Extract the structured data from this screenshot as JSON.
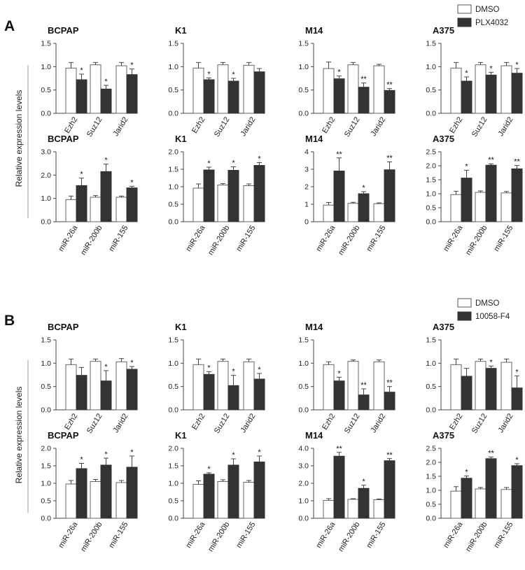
{
  "figure": {
    "sections": [
      {
        "letter": "A",
        "ylabel": "Relative expression levels",
        "legend": [
          {
            "label": "DMSO",
            "color": "#ffffff"
          },
          {
            "label": "PLX4032",
            "color": "#333333"
          }
        ]
      },
      {
        "letter": "B",
        "ylabel": "Relative expression levels",
        "legend": [
          {
            "label": "DMSO",
            "color": "#ffffff"
          },
          {
            "label": "10058-F4",
            "color": "#333333"
          }
        ]
      }
    ]
  },
  "chart_data": [
    {
      "type": "bar",
      "section": "A",
      "title": "BCPAP",
      "categories": [
        "Ezh2",
        "Suz12",
        "Jarid2"
      ],
      "ylim": [
        0,
        1.5
      ],
      "yticks": [
        "0.0",
        "0.5",
        "1.0",
        "1.5"
      ],
      "series": [
        {
          "name": "DMSO",
          "values": [
            0.97,
            1.04,
            1.02
          ],
          "errors": [
            0.12,
            0.05,
            0.07
          ]
        },
        {
          "name": "PLX4032",
          "values": [
            0.72,
            0.52,
            0.83
          ],
          "errors": [
            0.12,
            0.08,
            0.12
          ]
        }
      ],
      "annotations": [
        "*",
        "*",
        "*"
      ]
    },
    {
      "type": "bar",
      "section": "A",
      "title": "K1",
      "categories": [
        "Ezh2",
        "Suz12",
        "Jarid2"
      ],
      "ylim": [
        0,
        1.5
      ],
      "yticks": [
        "0.0",
        "0.5",
        "1.0",
        "1.5"
      ],
      "series": [
        {
          "name": "DMSO",
          "values": [
            0.97,
            1.04,
            1.03
          ],
          "errors": [
            0.12,
            0.05,
            0.06
          ]
        },
        {
          "name": "PLX4032",
          "values": [
            0.72,
            0.69,
            0.89
          ],
          "errors": [
            0.04,
            0.06,
            0.07
          ]
        }
      ],
      "annotations": [
        "*",
        "*",
        ""
      ]
    },
    {
      "type": "bar",
      "section": "A",
      "title": "M14",
      "categories": [
        "Ezh2",
        "Suz12",
        "Jarid2"
      ],
      "ylim": [
        0,
        1.5
      ],
      "yticks": [
        "0.0",
        "0.5",
        "1.0",
        "1.5"
      ],
      "series": [
        {
          "name": "DMSO",
          "values": [
            0.96,
            1.04,
            1.02
          ],
          "errors": [
            0.14,
            0.05,
            0.03
          ]
        },
        {
          "name": "PLX4032",
          "values": [
            0.74,
            0.56,
            0.49
          ],
          "errors": [
            0.06,
            0.09,
            0.04
          ]
        }
      ],
      "annotations": [
        "*",
        "**",
        "**"
      ]
    },
    {
      "type": "bar",
      "section": "A",
      "title": "A375",
      "categories": [
        "Ezh2",
        "Suz12",
        "Jarid2"
      ],
      "ylim": [
        0,
        1.5
      ],
      "yticks": [
        "0.0",
        "0.5",
        "1.0",
        "1.5"
      ],
      "series": [
        {
          "name": "DMSO",
          "values": [
            0.97,
            1.04,
            1.02
          ],
          "errors": [
            0.12,
            0.05,
            0.07
          ]
        },
        {
          "name": "PLX4032",
          "values": [
            0.69,
            0.82,
            0.86
          ],
          "errors": [
            0.09,
            0.06,
            0.1
          ]
        }
      ],
      "annotations": [
        "*",
        "*",
        "*"
      ]
    },
    {
      "type": "bar",
      "section": "A",
      "title": "BCPAP",
      "categories": [
        "miR-26a",
        "miR-200b",
        "miR-155"
      ],
      "ylim": [
        0,
        3
      ],
      "yticks": [
        "0.0",
        "1.0",
        "2.0",
        "3.0"
      ],
      "series": [
        {
          "name": "DMSO",
          "values": [
            0.95,
            1.05,
            1.05
          ],
          "errors": [
            0.15,
            0.07,
            0.05
          ]
        },
        {
          "name": "PLX4032",
          "values": [
            1.55,
            2.15,
            1.45
          ],
          "errors": [
            0.32,
            0.32,
            0.07
          ]
        }
      ],
      "annotations": [
        "*",
        "*",
        "*"
      ]
    },
    {
      "type": "bar",
      "section": "A",
      "title": "K1",
      "categories": [
        "miR-26a",
        "miR-200b",
        "miR-155"
      ],
      "ylim": [
        0,
        2
      ],
      "yticks": [
        "0.0",
        "0.5",
        "1.0",
        "1.5",
        "2.0"
      ],
      "series": [
        {
          "name": "DMSO",
          "values": [
            0.96,
            1.05,
            1.03
          ],
          "errors": [
            0.12,
            0.04,
            0.05
          ]
        },
        {
          "name": "PLX4032",
          "values": [
            1.48,
            1.47,
            1.61
          ],
          "errors": [
            0.08,
            0.1,
            0.08
          ]
        }
      ],
      "annotations": [
        "*",
        "*",
        "*"
      ]
    },
    {
      "type": "bar",
      "section": "A",
      "title": "M14",
      "categories": [
        "miR-26a",
        "miR-200b",
        "miR-155"
      ],
      "ylim": [
        0,
        4
      ],
      "yticks": [
        "0",
        "1",
        "2",
        "3",
        "4"
      ],
      "series": [
        {
          "name": "DMSO",
          "values": [
            0.95,
            1.05,
            1.03
          ],
          "errors": [
            0.15,
            0.06,
            0.05
          ]
        },
        {
          "name": "PLX4032",
          "values": [
            2.9,
            1.6,
            2.97
          ],
          "errors": [
            0.75,
            0.12,
            0.45
          ]
        }
      ],
      "annotations": [
        "**",
        "*",
        "**"
      ]
    },
    {
      "type": "bar",
      "section": "A",
      "title": "A375",
      "categories": [
        "miR-26a",
        "miR-200b",
        "miR-155"
      ],
      "ylim": [
        0,
        2.5
      ],
      "yticks": [
        "0.0",
        "0.5",
        "1.0",
        "1.5",
        "2.0",
        "2.5"
      ],
      "series": [
        {
          "name": "DMSO",
          "values": [
            0.97,
            1.05,
            1.03
          ],
          "errors": [
            0.12,
            0.05,
            0.05
          ]
        },
        {
          "name": "PLX4032",
          "values": [
            1.56,
            2.02,
            1.89
          ],
          "errors": [
            0.28,
            0.05,
            0.12
          ]
        }
      ],
      "annotations": [
        "*",
        "**",
        "**"
      ]
    },
    {
      "type": "bar",
      "section": "B",
      "title": "BCPAP",
      "categories": [
        "Ezh2",
        "Suz12",
        "Jarid2"
      ],
      "ylim": [
        0,
        1.5
      ],
      "yticks": [
        "0.0",
        "0.5",
        "1.0",
        "1.5"
      ],
      "series": [
        {
          "name": "DMSO",
          "values": [
            0.97,
            1.04,
            1.03
          ],
          "errors": [
            0.12,
            0.05,
            0.07
          ]
        },
        {
          "name": "10058-F4",
          "values": [
            0.74,
            0.62,
            0.87
          ],
          "errors": [
            0.17,
            0.22,
            0.06
          ]
        }
      ],
      "annotations": [
        "",
        "*",
        "*"
      ]
    },
    {
      "type": "bar",
      "section": "B",
      "title": "K1",
      "categories": [
        "Ezh2",
        "Suz12",
        "Jarid2"
      ],
      "ylim": [
        0,
        1.5
      ],
      "yticks": [
        "0.0",
        "0.5",
        "1.0",
        "1.5"
      ],
      "series": [
        {
          "name": "DMSO",
          "values": [
            0.97,
            1.04,
            1.03
          ],
          "errors": [
            0.12,
            0.05,
            0.06
          ]
        },
        {
          "name": "10058-F4",
          "values": [
            0.76,
            0.52,
            0.66
          ],
          "errors": [
            0.06,
            0.22,
            0.12
          ]
        }
      ],
      "annotations": [
        "*",
        "*",
        "*"
      ]
    },
    {
      "type": "bar",
      "section": "B",
      "title": "M14",
      "categories": [
        "Ezh2",
        "Suz12",
        "Jarid2"
      ],
      "ylim": [
        0,
        1.5
      ],
      "yticks": [
        "0.0",
        "0.5",
        "1.0",
        "1.5"
      ],
      "series": [
        {
          "name": "DMSO",
          "values": [
            0.97,
            1.04,
            1.03
          ],
          "errors": [
            0.06,
            0.03,
            0.04
          ]
        },
        {
          "name": "10058-F4",
          "values": [
            0.62,
            0.32,
            0.38
          ],
          "errors": [
            0.08,
            0.13,
            0.12
          ]
        }
      ],
      "annotations": [
        "*",
        "**",
        "**"
      ]
    },
    {
      "type": "bar",
      "section": "B",
      "title": "A375",
      "categories": [
        "Ezh2",
        "Suz12",
        "Jarid2"
      ],
      "ylim": [
        0,
        1.5
      ],
      "yticks": [
        "0.0",
        "0.5",
        "1.0",
        "1.5"
      ],
      "series": [
        {
          "name": "DMSO",
          "values": [
            0.97,
            1.04,
            1.02
          ],
          "errors": [
            0.12,
            0.05,
            0.07
          ]
        },
        {
          "name": "10058-F4",
          "values": [
            0.72,
            0.89,
            0.47
          ],
          "errors": [
            0.17,
            0.05,
            0.26
          ]
        }
      ],
      "annotations": [
        "",
        "*",
        "*"
      ]
    },
    {
      "type": "bar",
      "section": "B",
      "title": "BCPAP",
      "categories": [
        "miR-26a",
        "miR-200b",
        "miR-155"
      ],
      "ylim": [
        0,
        2
      ],
      "yticks": [
        "0.0",
        "0.5",
        "1.0",
        "1.5",
        "2.0"
      ],
      "series": [
        {
          "name": "DMSO",
          "values": [
            0.98,
            1.05,
            1.02
          ],
          "errors": [
            0.1,
            0.06,
            0.06
          ]
        },
        {
          "name": "10058-F4",
          "values": [
            1.42,
            1.52,
            1.46
          ],
          "errors": [
            0.15,
            0.2,
            0.32
          ]
        }
      ],
      "annotations": [
        "*",
        "*",
        "*"
      ]
    },
    {
      "type": "bar",
      "section": "B",
      "title": "K1",
      "categories": [
        "miR-26a",
        "miR-200b",
        "miR-155"
      ],
      "ylim": [
        0,
        2
      ],
      "yticks": [
        "0.0",
        "0.5",
        "1.0",
        "1.5",
        "2.0"
      ],
      "series": [
        {
          "name": "DMSO",
          "values": [
            0.97,
            1.05,
            1.03
          ],
          "errors": [
            0.1,
            0.05,
            0.05
          ]
        },
        {
          "name": "10058-F4",
          "values": [
            1.26,
            1.52,
            1.61
          ],
          "errors": [
            0.04,
            0.18,
            0.17
          ]
        }
      ],
      "annotations": [
        "*",
        "*",
        "*"
      ]
    },
    {
      "type": "bar",
      "section": "B",
      "title": "M14",
      "categories": [
        "miR-26a",
        "miR-200b",
        "miR-155"
      ],
      "ylim": [
        0,
        4
      ],
      "yticks": [
        "0.0",
        "1.0",
        "2.0",
        "3.0",
        "4.0"
      ],
      "series": [
        {
          "name": "DMSO",
          "values": [
            1.02,
            1.08,
            1.06
          ],
          "errors": [
            0.1,
            0.04,
            0.04
          ]
        },
        {
          "name": "10058-F4",
          "values": [
            3.55,
            1.71,
            3.29
          ],
          "errors": [
            0.22,
            0.18,
            0.12
          ]
        }
      ],
      "annotations": [
        "**",
        "*",
        "**"
      ]
    },
    {
      "type": "bar",
      "section": "B",
      "title": "A375",
      "categories": [
        "miR-26a",
        "miR-200b",
        "miR-155"
      ],
      "ylim": [
        0,
        2.5
      ],
      "yticks": [
        "0.0",
        "0.5",
        "1.0",
        "1.5",
        "2.0",
        "2.5"
      ],
      "series": [
        {
          "name": "DMSO",
          "values": [
            0.97,
            1.05,
            1.03
          ],
          "errors": [
            0.16,
            0.05,
            0.07
          ]
        },
        {
          "name": "10058-F4",
          "values": [
            1.43,
            2.13,
            1.88
          ],
          "errors": [
            0.08,
            0.06,
            0.07
          ]
        }
      ],
      "annotations": [
        "*",
        "**",
        "*"
      ]
    }
  ]
}
